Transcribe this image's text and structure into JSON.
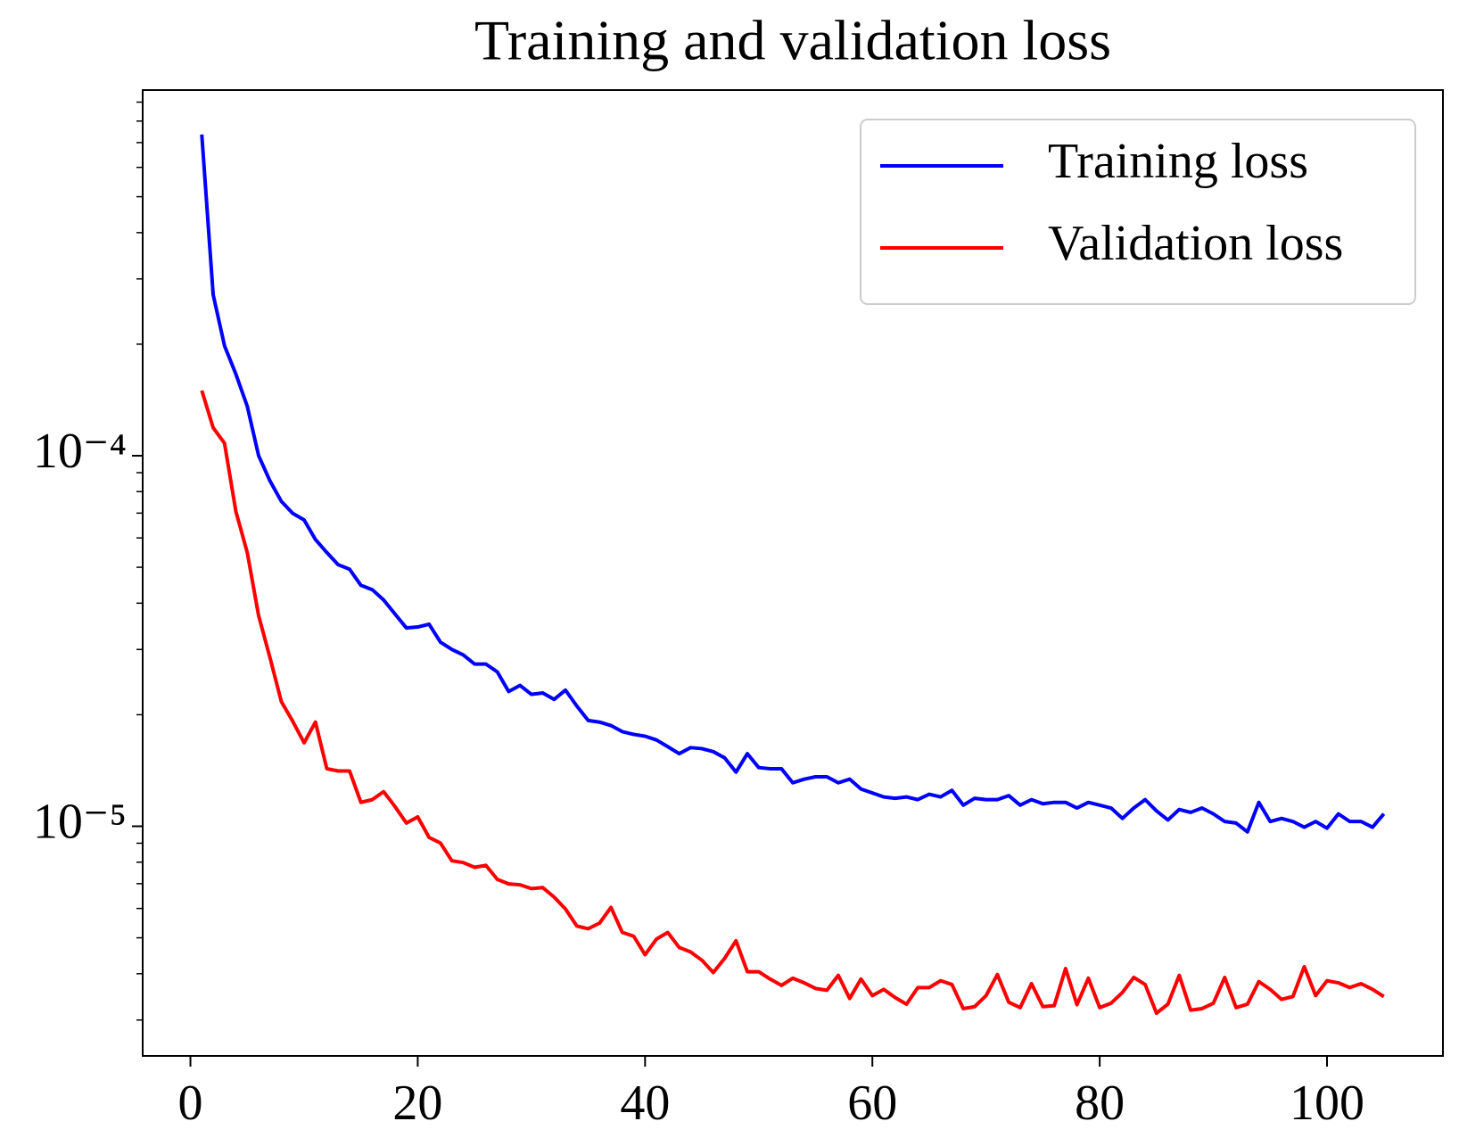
{
  "chart_data": {
    "type": "line",
    "title": "Training and validation loss",
    "x": [
      1,
      2,
      3,
      4,
      5,
      6,
      7,
      8,
      9,
      10,
      11,
      12,
      13,
      14,
      15,
      16,
      17,
      18,
      19,
      20,
      21,
      22,
      23,
      24,
      25,
      26,
      27,
      28,
      29,
      30,
      31,
      32,
      33,
      34,
      35,
      36,
      37,
      38,
      39,
      40,
      41,
      42,
      43,
      44,
      45,
      46,
      47,
      48,
      49,
      50,
      51,
      52,
      53,
      54,
      55,
      56,
      57,
      58,
      59,
      60,
      61,
      62,
      63,
      64,
      65,
      66,
      67,
      68,
      69,
      70,
      71,
      72,
      73,
      74,
      75,
      76,
      77,
      78,
      79,
      80,
      81,
      82,
      83,
      84,
      85,
      86,
      87,
      88,
      89,
      90,
      91,
      92,
      93,
      94,
      95,
      96,
      97,
      98,
      99,
      100,
      101,
      102,
      103,
      104,
      105
    ],
    "series": [
      {
        "name": "Training loss",
        "color": "#0000ff",
        "values": [
          0.000736,
          0.000272,
          0.000198,
          0.000166,
          0.000136,
          0.0001,
          8.55e-05,
          7.53e-05,
          6.99e-05,
          6.71e-05,
          5.94e-05,
          5.48e-05,
          5.08e-05,
          4.94e-05,
          4.47e-05,
          4.35e-05,
          4.08e-05,
          3.74e-05,
          3.43e-05,
          3.45e-05,
          3.51e-05,
          3.14e-05,
          3e-05,
          2.9e-05,
          2.74e-05,
          2.74e-05,
          2.61e-05,
          2.31e-05,
          2.4e-05,
          2.27e-05,
          2.29e-05,
          2.2e-05,
          2.33e-05,
          2.11e-05,
          1.93e-05,
          1.91e-05,
          1.87e-05,
          1.8e-05,
          1.77e-05,
          1.75e-05,
          1.71e-05,
          1.64e-05,
          1.57e-05,
          1.63e-05,
          1.62e-05,
          1.59e-05,
          1.53e-05,
          1.4e-05,
          1.57e-05,
          1.44e-05,
          1.43e-05,
          1.43e-05,
          1.31e-05,
          1.34e-05,
          1.36e-05,
          1.36e-05,
          1.31e-05,
          1.34e-05,
          1.26e-05,
          1.23e-05,
          1.2e-05,
          1.19e-05,
          1.2e-05,
          1.18e-05,
          1.22e-05,
          1.2e-05,
          1.25e-05,
          1.14e-05,
          1.19e-05,
          1.18e-05,
          1.18e-05,
          1.21e-05,
          1.14e-05,
          1.18e-05,
          1.15e-05,
          1.16e-05,
          1.16e-05,
          1.12e-05,
          1.16e-05,
          1.14e-05,
          1.12e-05,
          1.05e-05,
          1.12e-05,
          1.18e-05,
          1.1e-05,
          1.04e-05,
          1.11e-05,
          1.09e-05,
          1.12e-05,
          1.08e-05,
          1.03e-05,
          1.02e-05,
          9.66e-06,
          1.16e-05,
          1.03e-05,
          1.05e-05,
          1.03e-05,
          9.94e-06,
          1.03e-05,
          9.88e-06,
          1.08e-05,
          1.03e-05,
          1.03e-05,
          9.94e-06,
          1.08e-05
        ]
      },
      {
        "name": "Validation loss",
        "color": "#ff0000",
        "values": [
          0.00015,
          0.000119,
          0.000108,
          7.07e-05,
          5.48e-05,
          3.7e-05,
          2.85e-05,
          2.17e-05,
          1.92e-05,
          1.68e-05,
          1.91e-05,
          1.43e-05,
          1.41e-05,
          1.41e-05,
          1.16e-05,
          1.18e-05,
          1.24e-05,
          1.13e-05,
          1.02e-05,
          1.06e-05,
          9.33e-06,
          9.01e-06,
          8.07e-06,
          7.98e-06,
          7.75e-06,
          7.84e-06,
          7.19e-06,
          6.99e-06,
          6.95e-06,
          6.79e-06,
          6.83e-06,
          6.44e-06,
          5.98e-06,
          5.38e-06,
          5.29e-06,
          5.48e-06,
          6.04e-06,
          5.17e-06,
          5.05e-06,
          4.5e-06,
          4.96e-06,
          5.17e-06,
          4.71e-06,
          4.58e-06,
          4.35e-06,
          4.03e-06,
          4.4e-06,
          4.91e-06,
          4.05e-06,
          4.05e-06,
          3.87e-06,
          3.72e-06,
          3.89e-06,
          3.78e-06,
          3.65e-06,
          3.61e-06,
          3.96e-06,
          3.43e-06,
          3.87e-06,
          3.49e-06,
          3.63e-06,
          3.45e-06,
          3.31e-06,
          3.67e-06,
          3.67e-06,
          3.83e-06,
          3.74e-06,
          3.22e-06,
          3.26e-06,
          3.49e-06,
          3.98e-06,
          3.35e-06,
          3.24e-06,
          3.76e-06,
          3.26e-06,
          3.28e-06,
          4.13e-06,
          3.3e-06,
          3.89e-06,
          3.24e-06,
          3.33e-06,
          3.56e-06,
          3.91e-06,
          3.74e-06,
          3.13e-06,
          3.31e-06,
          3.96e-06,
          3.19e-06,
          3.22e-06,
          3.33e-06,
          3.91e-06,
          3.24e-06,
          3.31e-06,
          3.81e-06,
          3.63e-06,
          3.41e-06,
          3.47e-06,
          4.18e-06,
          3.49e-06,
          3.83e-06,
          3.78e-06,
          3.67e-06,
          3.76e-06,
          3.63e-06,
          3.47e-06
        ]
      }
    ],
    "xlim": [
      -4.2,
      110.2
    ],
    "xticks": [
      0,
      20,
      40,
      60,
      80,
      100
    ],
    "ylim": [
      2.4e-06,
      0.00097
    ],
    "yticks": [
      {
        "value": 1e-05,
        "label": "10⁻⁵"
      },
      {
        "value": 0.0001,
        "label": "10⁻⁴"
      }
    ],
    "yminorticks": [
      3e-06,
      4e-06,
      5e-06,
      6e-06,
      7e-06,
      8e-06,
      9e-06,
      2e-05,
      3e-05,
      4e-05,
      5e-05,
      6e-05,
      7e-05,
      8e-05,
      9e-05,
      0.0002,
      0.0003,
      0.0004,
      0.0005,
      0.0006,
      0.0007,
      0.0008,
      0.0009
    ],
    "ylog": true,
    "grid": false,
    "legend": "upper right"
  }
}
